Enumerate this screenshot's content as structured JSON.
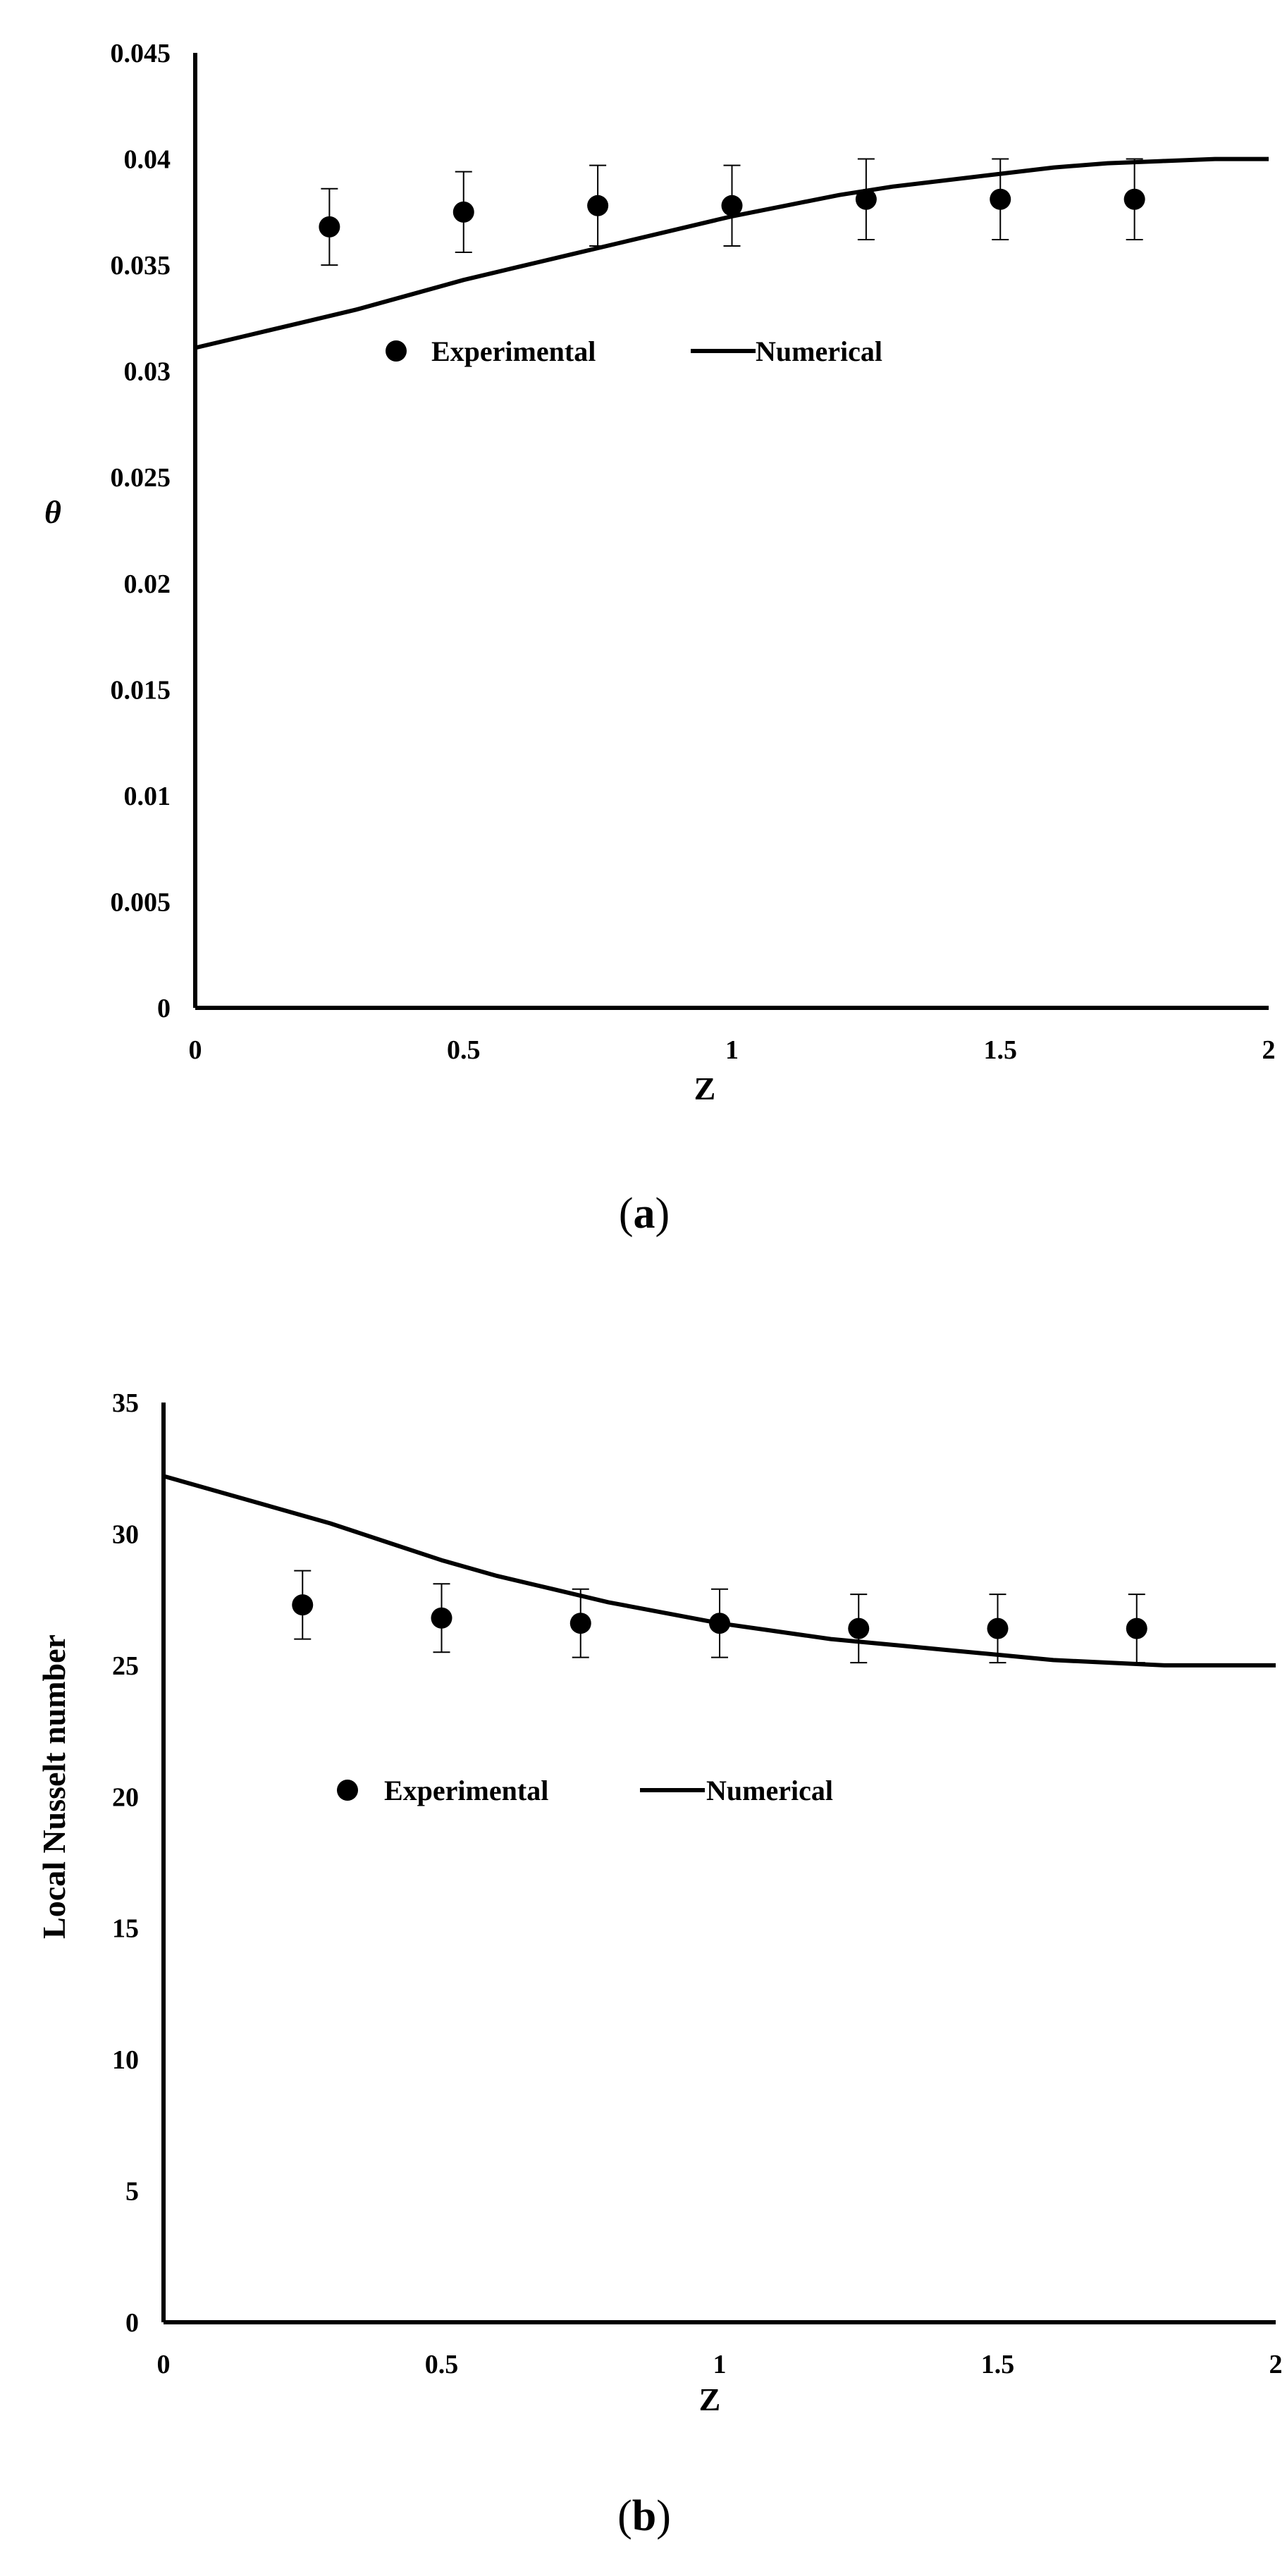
{
  "figure": {
    "colors": {
      "axis": "#000000",
      "marker": "#000000",
      "line": "#000000",
      "background": "#ffffff"
    }
  },
  "chart_data": [
    {
      "id": "a",
      "type": "scatter",
      "caption_letter": "a",
      "title": "",
      "xlabel": "Z",
      "ylabel": "θ",
      "xlim": [
        0,
        2
      ],
      "ylim": [
        0,
        0.045
      ],
      "x_ticks": [
        "0",
        "0.5",
        "1",
        "1.5",
        "2"
      ],
      "y_ticks": [
        "0",
        "0.005",
        "0.01",
        "0.015",
        "0.02",
        "0.025",
        "0.03",
        "0.035",
        "0.04",
        "0.045"
      ],
      "grid": false,
      "legend_position": "upper-middle",
      "series": [
        {
          "name": "Experimental",
          "kind": "markers-with-error-bars",
          "x": [
            0.25,
            0.5,
            0.75,
            1.0,
            1.25,
            1.5,
            1.75
          ],
          "y": [
            0.0368,
            0.0375,
            0.0378,
            0.0378,
            0.0381,
            0.0381,
            0.0381
          ],
          "error": [
            0.0018,
            0.0019,
            0.0019,
            0.0019,
            0.0019,
            0.0019,
            0.0019
          ]
        },
        {
          "name": "Numerical",
          "kind": "line",
          "x": [
            0,
            0.1,
            0.2,
            0.3,
            0.4,
            0.5,
            0.6,
            0.7,
            0.8,
            0.9,
            1.0,
            1.1,
            1.2,
            1.3,
            1.4,
            1.5,
            1.6,
            1.7,
            1.8,
            1.9,
            2.0
          ],
          "y": [
            0.0311,
            0.0317,
            0.0323,
            0.0329,
            0.0336,
            0.0343,
            0.0349,
            0.0355,
            0.0361,
            0.0367,
            0.0373,
            0.0378,
            0.0383,
            0.0387,
            0.039,
            0.0393,
            0.0396,
            0.0398,
            0.0399,
            0.04,
            0.04
          ]
        }
      ]
    },
    {
      "id": "b",
      "type": "scatter",
      "caption_letter": "b",
      "title": "",
      "xlabel": "Z",
      "ylabel": "Local Nusselt number",
      "xlim": [
        0,
        2
      ],
      "ylim": [
        0,
        35
      ],
      "x_ticks": [
        "0",
        "0.5",
        "1",
        "1.5",
        "2"
      ],
      "y_ticks": [
        "0",
        "5",
        "10",
        "15",
        "20",
        "25",
        "30",
        "35"
      ],
      "grid": false,
      "legend_position": "middle",
      "series": [
        {
          "name": "Experimental",
          "kind": "markers-with-error-bars",
          "x": [
            0.25,
            0.5,
            0.75,
            1.0,
            1.25,
            1.5,
            1.75
          ],
          "y": [
            27.3,
            26.8,
            26.6,
            26.6,
            26.4,
            26.4,
            26.4
          ],
          "error": [
            1.3,
            1.3,
            1.3,
            1.3,
            1.3,
            1.3,
            1.3
          ]
        },
        {
          "name": "Numerical",
          "kind": "line",
          "x": [
            0,
            0.1,
            0.2,
            0.3,
            0.4,
            0.5,
            0.6,
            0.7,
            0.8,
            0.9,
            1.0,
            1.1,
            1.2,
            1.3,
            1.4,
            1.5,
            1.6,
            1.7,
            1.8,
            1.9,
            2.0
          ],
          "y": [
            32.2,
            31.6,
            31.0,
            30.4,
            29.7,
            29.0,
            28.4,
            27.9,
            27.4,
            27.0,
            26.6,
            26.3,
            26.0,
            25.8,
            25.6,
            25.4,
            25.2,
            25.1,
            25.0,
            25.0,
            25.0
          ]
        }
      ]
    }
  ]
}
